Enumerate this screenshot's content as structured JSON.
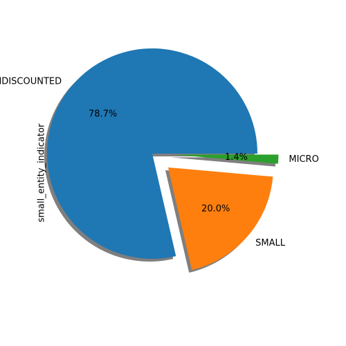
{
  "chart_data": {
    "type": "pie",
    "ylabel": "small_entity_indicator",
    "categories": [
      "UNDISCOUNTED",
      "SMALL",
      "MICRO"
    ],
    "values": [
      78.7,
      20.0,
      1.4
    ],
    "pct_labels": [
      "78.7%",
      "20.0%",
      "1.4%"
    ],
    "colors": [
      "#1f77b4",
      "#ff7f0e",
      "#2ca02c"
    ],
    "explode": [
      0,
      0.2,
      0.2
    ],
    "shadow": true,
    "start_angle_deg": 0,
    "direction": "counterclockwise"
  }
}
